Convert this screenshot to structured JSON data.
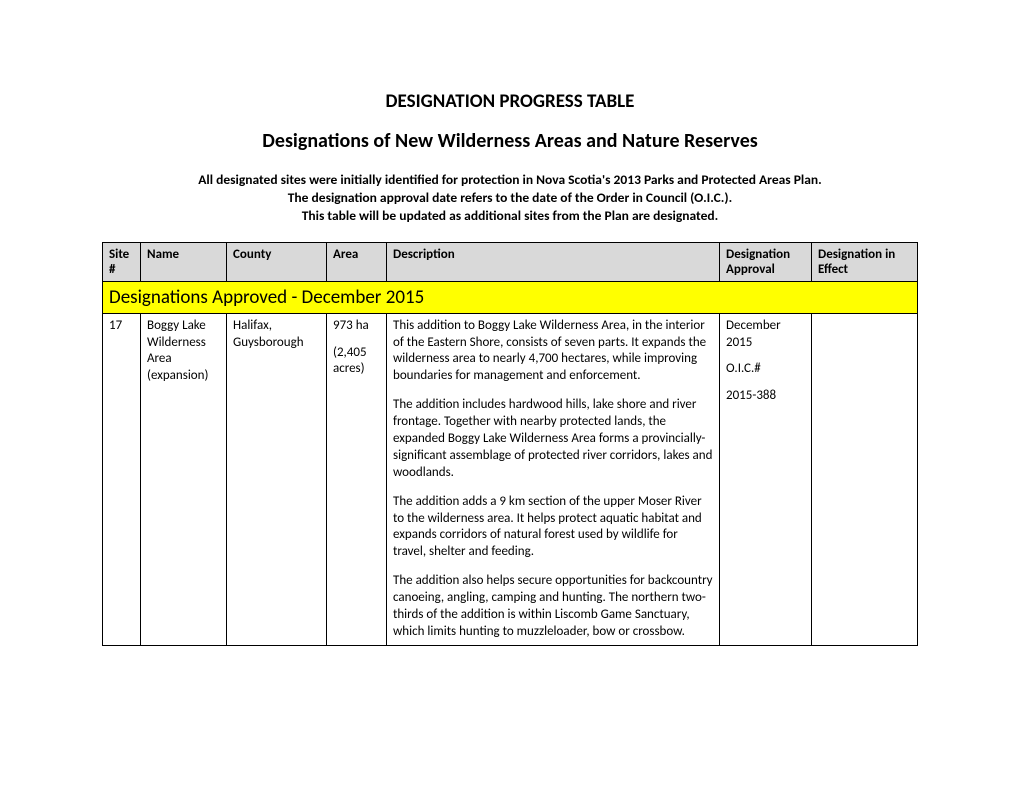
{
  "title1": "DESIGNATION PROGRESS TABLE",
  "title2": "Designations of New Wilderness Areas and Nature Reserves",
  "intro_line1": "All designated sites were initially identified for protection in Nova Scotia's 2013 Parks and Protected Areas Plan.",
  "intro_line2": "The designation approval date refers to the date of the Order in Council (O.I.C.).",
  "intro_line3": "This table will be updated as additional sites from the Plan are designated.",
  "headers": {
    "site": "Site #",
    "name": "Name",
    "county": "County",
    "area": "Area",
    "description": "Description",
    "approval": "Designation Approval",
    "effect": "Designation in Effect"
  },
  "section_title": "Designations Approved - December 2015",
  "row": {
    "site": "17",
    "name_l1": "Boggy Lake",
    "name_l2": "Wilderness",
    "name_l3": "Area",
    "name_l4": "(expansion)",
    "county_l1": "Halifax,",
    "county_l2": "Guysborough",
    "area_primary": "973 ha",
    "area_secondary_l1": "(2,405",
    "area_secondary_l2": "acres)",
    "desc_p1": "This addition to Boggy Lake Wilderness Area, in the interior of the Eastern Shore, consists of seven parts. It expands the wilderness area to nearly 4,700 hectares, while improving boundaries for management and enforcement.",
    "desc_p2": "The addition includes hardwood hills, lake shore and river frontage. Together with nearby protected lands, the expanded Boggy Lake Wilderness Area forms a provincially-significant assemblage of protected river corridors, lakes and woodlands.",
    "desc_p3": "The addition adds a 9 km section of the upper Moser River to the wilderness area. It helps protect aquatic habitat and expands corridors of natural forest used by wildlife for travel, shelter and feeding.",
    "desc_p4": "The addition also helps secure opportunities for backcountry canoeing, angling, camping and hunting. The northern two-thirds of the addition is within Liscomb Game Sanctuary, which limits hunting to muzzleloader, bow or crossbow.",
    "approval_l1": "December",
    "approval_l2": "2015",
    "approval_l3": "O.I.C.#",
    "approval_l4": "2015-388",
    "effect": ""
  }
}
